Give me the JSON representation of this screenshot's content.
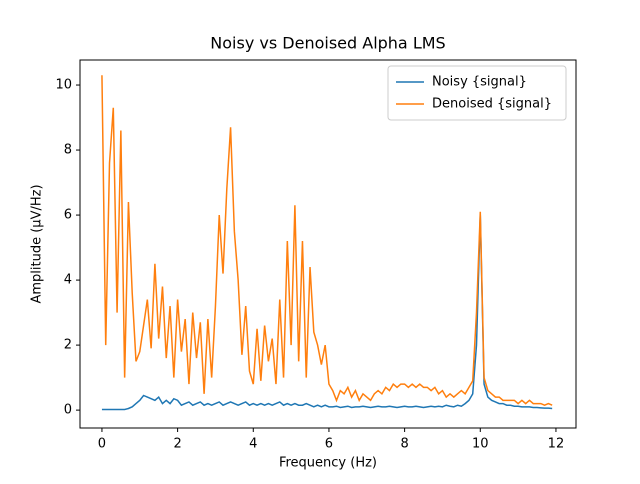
{
  "chart_data": {
    "type": "line",
    "title": "Noisy vs Denoised Alpha LMS",
    "x_label": "Frequency (Hz)",
    "y_label": "Amplitude (μV/Hz)",
    "x": [
      0,
      0.1,
      0.2,
      0.3,
      0.4,
      0.5,
      0.6,
      0.7,
      0.8,
      0.9,
      1,
      1.1,
      1.2,
      1.3,
      1.4,
      1.5,
      1.6,
      1.7,
      1.8,
      1.9,
      2,
      2.1,
      2.2,
      2.3,
      2.4,
      2.5,
      2.6,
      2.7,
      2.8,
      2.9,
      3,
      3.1,
      3.2,
      3.3,
      3.4,
      3.5,
      3.6,
      3.7,
      3.8,
      3.9,
      4,
      4.1,
      4.2,
      4.3,
      4.4,
      4.5,
      4.6,
      4.7,
      4.8,
      4.9,
      5,
      5.1,
      5.2,
      5.3,
      5.4,
      5.5,
      5.6,
      5.7,
      5.8,
      5.9,
      6,
      6.1,
      6.2,
      6.3,
      6.4,
      6.5,
      6.6,
      6.7,
      6.8,
      6.9,
      7,
      7.1,
      7.2,
      7.3,
      7.4,
      7.5,
      7.6,
      7.7,
      7.8,
      7.9,
      8,
      8.1,
      8.2,
      8.3,
      8.4,
      8.5,
      8.6,
      8.7,
      8.8,
      8.9,
      9,
      9.1,
      9.2,
      9.3,
      9.4,
      9.5,
      9.6,
      9.7,
      9.8,
      9.9,
      10,
      10.1,
      10.2,
      10.3,
      10.4,
      10.5,
      10.6,
      10.7,
      10.8,
      10.9,
      11,
      11.1,
      11.2,
      11.3,
      11.4,
      11.5,
      11.6,
      11.7,
      11.8,
      11.9
    ],
    "series": [
      {
        "name": "Noisy {signal}",
        "color": "#1f77b4",
        "values": [
          0.02,
          0.02,
          0.02,
          0.02,
          0.02,
          0.02,
          0.02,
          0.05,
          0.1,
          0.2,
          0.3,
          0.45,
          0.4,
          0.35,
          0.3,
          0.4,
          0.2,
          0.3,
          0.2,
          0.35,
          0.3,
          0.15,
          0.2,
          0.25,
          0.15,
          0.2,
          0.25,
          0.15,
          0.2,
          0.15,
          0.2,
          0.25,
          0.15,
          0.2,
          0.25,
          0.2,
          0.15,
          0.2,
          0.25,
          0.15,
          0.2,
          0.15,
          0.2,
          0.15,
          0.2,
          0.15,
          0.2,
          0.25,
          0.15,
          0.2,
          0.15,
          0.2,
          0.15,
          0.15,
          0.2,
          0.15,
          0.1,
          0.15,
          0.1,
          0.15,
          0.1,
          0.1,
          0.12,
          0.08,
          0.1,
          0.12,
          0.08,
          0.1,
          0.1,
          0.12,
          0.1,
          0.08,
          0.1,
          0.12,
          0.1,
          0.1,
          0.12,
          0.1,
          0.08,
          0.1,
          0.12,
          0.1,
          0.1,
          0.12,
          0.1,
          0.08,
          0.1,
          0.12,
          0.1,
          0.12,
          0.1,
          0.15,
          0.12,
          0.1,
          0.15,
          0.12,
          0.2,
          0.3,
          0.5,
          2.0,
          6.0,
          0.8,
          0.4,
          0.3,
          0.25,
          0.2,
          0.2,
          0.15,
          0.15,
          0.12,
          0.12,
          0.1,
          0.1,
          0.1,
          0.08,
          0.08,
          0.07,
          0.06,
          0.06,
          0.05
        ]
      },
      {
        "name": "Denoised {signal}",
        "color": "#ff7f0e",
        "values": [
          10.3,
          2.0,
          7.6,
          9.3,
          3.0,
          8.6,
          1.0,
          6.4,
          3.6,
          1.5,
          1.8,
          2.6,
          3.4,
          1.9,
          4.5,
          2.2,
          3.8,
          1.6,
          3.2,
          1.0,
          3.4,
          1.8,
          2.8,
          0.8,
          3.0,
          1.6,
          2.7,
          0.5,
          2.8,
          1.0,
          3.2,
          6.0,
          4.2,
          6.8,
          8.7,
          5.5,
          4.0,
          1.7,
          3.2,
          1.2,
          0.8,
          2.5,
          0.9,
          2.6,
          1.5,
          2.2,
          0.8,
          3.4,
          1.0,
          5.2,
          2.0,
          6.3,
          1.5,
          5.2,
          1.0,
          4.4,
          2.4,
          2.0,
          1.4,
          2.0,
          0.8,
          0.6,
          0.3,
          0.6,
          0.5,
          0.7,
          0.4,
          0.6,
          0.3,
          0.5,
          0.4,
          0.3,
          0.5,
          0.6,
          0.5,
          0.7,
          0.6,
          0.8,
          0.7,
          0.8,
          0.8,
          0.7,
          0.8,
          0.7,
          0.8,
          0.7,
          0.7,
          0.6,
          0.7,
          0.5,
          0.6,
          0.4,
          0.5,
          0.4,
          0.5,
          0.6,
          0.5,
          0.7,
          0.9,
          3.0,
          6.1,
          1.0,
          0.6,
          0.5,
          0.4,
          0.4,
          0.3,
          0.3,
          0.3,
          0.3,
          0.2,
          0.3,
          0.2,
          0.3,
          0.2,
          0.2,
          0.2,
          0.15,
          0.2,
          0.15
        ]
      }
    ],
    "xlim": [
      -0.58,
      12.53
    ],
    "ylim": [
      -0.55,
      10.77
    ],
    "xticks": [
      0,
      2,
      4,
      6,
      8,
      10,
      12
    ],
    "yticks": [
      0,
      2,
      4,
      6,
      8,
      10
    ],
    "legend": "upper right"
  }
}
